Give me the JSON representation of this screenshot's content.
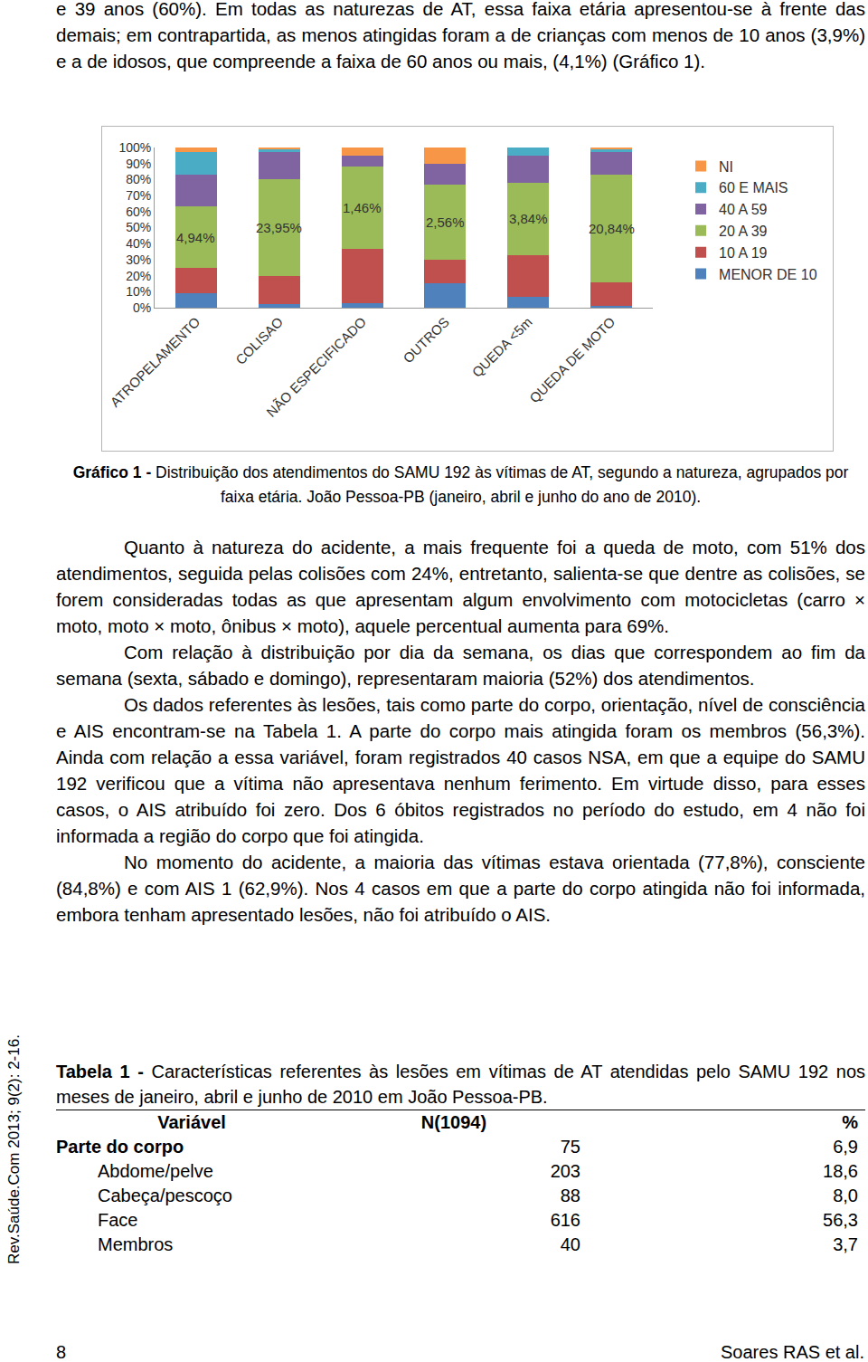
{
  "document": {
    "paragraphs_before": [
      "e 39 anos (60%). Em todas as naturezas de AT, essa faixa etária apresentou-se à frente das demais; em contrapartida, as menos atingidas foram a de crianças com menos de 10 anos (3,9%) e a de idosos, que compreende a faixa de 60 anos ou mais, (4,1%) (Gráfico 1)."
    ],
    "figure_caption": {
      "label": "Gráfico 1 -",
      "text": " Distribuição dos atendimentos do SAMU 192 às vítimas de AT, segundo a natureza, agrupados por faixa etária. João Pessoa-PB (janeiro, abril e junho do ano de 2010)."
    },
    "paragraphs": [
      "Quanto à natureza do acidente, a mais frequente foi a queda de moto, com 51% dos atendimentos, seguida pelas colisões com 24%, entretanto, salienta-se que dentre as colisões, se forem consideradas todas as que apresentam algum envolvimento com motocicletas (carro × moto, moto × moto, ônibus × moto), aquele percentual aumenta para 69%.",
      "Com relação à distribuição por dia da semana, os dias que correspondem ao fim da semana (sexta, sábado e domingo), representaram maioria (52%) dos atendimentos.",
      "Os dados referentes às lesões, tais como parte do corpo, orientação, nível de consciência e AIS encontram-se na Tabela 1. A parte do corpo mais atingida foram os membros (56,3%). Ainda com relação a essa variável, foram registrados 40 casos NSA, em que a equipe do SAMU 192 verificou que a vítima não apresentava nenhum ferimento. Em virtude disso, para esses casos, o AIS atribuído foi zero. Dos 6 óbitos registrados no período do estudo, em 4 não foi informada a região do corpo que foi atingida.",
      "No momento do acidente, a maioria das vítimas estava orientada (77,8%), consciente (84,8%) e com AIS 1 (62,9%). Nos 4 casos em que a parte do corpo atingida não foi informada, embora tenham apresentado lesões, não foi atribuído o AIS."
    ],
    "table": {
      "caption": {
        "label": "Tabela 1 -",
        "text": " Características referentes às lesões em vítimas de AT atendidas pelo SAMU 192 nos meses de janeiro, abril e junho de 2010 em João Pessoa-PB."
      },
      "header": [
        "Variável",
        "N(1094)",
        "%"
      ],
      "group": [
        "Parte do corpo",
        "75",
        "6,9"
      ],
      "rows": [
        [
          "Abdome/pelve",
          "203",
          "18,6"
        ],
        [
          "Cabeça/pescoço",
          "88",
          "8,0"
        ],
        [
          "Face",
          "616",
          "56,3"
        ],
        [
          "Membros",
          "40",
          "3,7"
        ]
      ]
    },
    "side_text": "Rev.Saúde.Com 2013; 9(2): 2-16.",
    "footer": {
      "page": "8",
      "author": "Soares RAS et al."
    }
  },
  "chart_data": {
    "type": "bar",
    "stacked": true,
    "categories": [
      "ATROPELAMENTO",
      "COLISAO",
      "NÃO ESPECIFICADO",
      "OUTROS",
      "QUEDA <5m",
      "QUEDA DE MOTO"
    ],
    "series": [
      {
        "name": "MENOR DE 10",
        "color": "#4f81bd",
        "values": [
          9,
          2,
          3,
          15,
          7,
          1
        ]
      },
      {
        "name": "10 A 19",
        "color": "#c0504d",
        "values": [
          16,
          18,
          34,
          15,
          26,
          15
        ]
      },
      {
        "name": "20 A 39",
        "color": "#9bbb59",
        "values": [
          38,
          60,
          51,
          47,
          45,
          67
        ]
      },
      {
        "name": "40 A 59",
        "color": "#8064a2",
        "values": [
          20,
          17,
          7,
          13,
          17,
          14
        ]
      },
      {
        "name": "60 E MAIS",
        "color": "#4bacc6",
        "values": [
          14,
          2,
          0,
          0,
          5,
          2
        ]
      },
      {
        "name": "NI",
        "color": "#f79646",
        "values": [
          3,
          1,
          5,
          10,
          0,
          1
        ]
      }
    ],
    "annotations": [
      "4,94%",
      "23,95%",
      "1,46%",
      "2,56%",
      "3,84%",
      "20,84%"
    ],
    "ylim": [
      0,
      100
    ],
    "yticks": [
      {
        "value": 0,
        "label": "0%"
      },
      {
        "value": 10,
        "label": "10%"
      },
      {
        "value": 20,
        "label": "20%"
      },
      {
        "value": 30,
        "label": "30%"
      },
      {
        "value": 40,
        "label": "40%"
      },
      {
        "value": 50,
        "label": "50%"
      },
      {
        "value": 60,
        "label": "60%"
      },
      {
        "value": 70,
        "label": "70%"
      },
      {
        "value": 80,
        "label": "80%"
      },
      {
        "value": 90,
        "label": "90%"
      },
      {
        "value": 100,
        "label": "100%"
      }
    ],
    "grid": false,
    "legend": "right"
  }
}
